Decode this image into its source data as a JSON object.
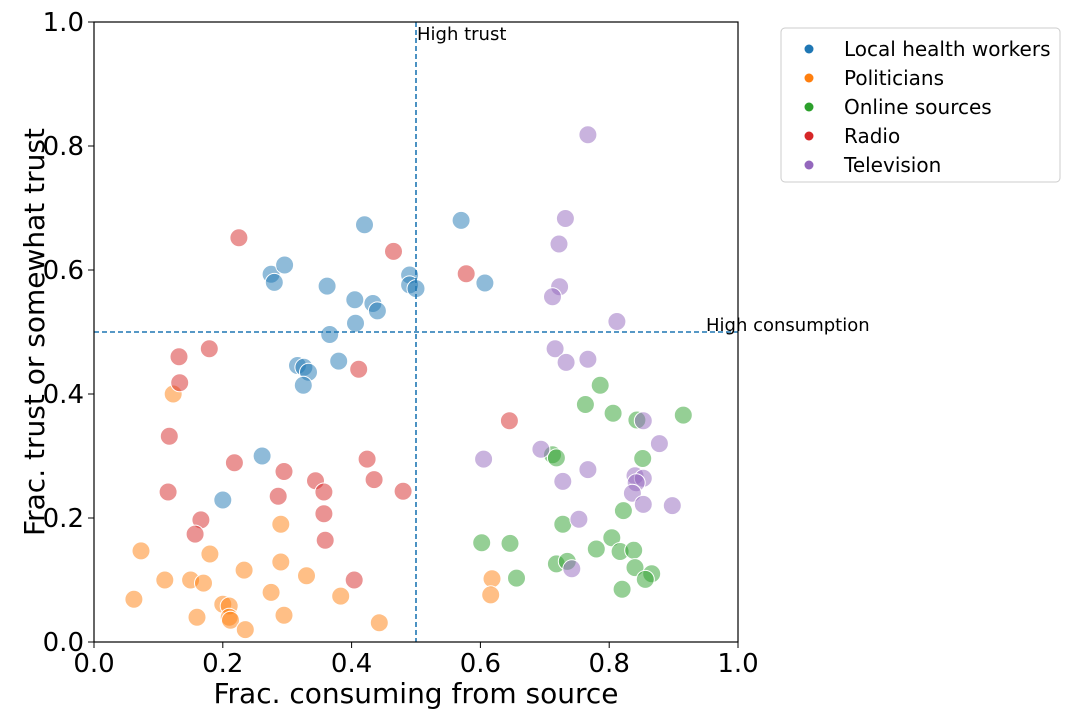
{
  "chart_data": {
    "type": "scatter",
    "title": "",
    "xlabel": "Frac. consuming from source",
    "ylabel": "Frac. trust or somewhat trust",
    "xlim": [
      0.0,
      1.0
    ],
    "ylim": [
      0.0,
      1.0
    ],
    "xticks": [
      "0.0",
      "0.2",
      "0.4",
      "0.6",
      "0.8",
      "1.0"
    ],
    "yticks": [
      "0.0",
      "0.2",
      "0.4",
      "0.6",
      "0.8",
      "1.0"
    ],
    "grid": false,
    "legend_position": "outside-top-right",
    "reference_lines": [
      {
        "orientation": "vertical",
        "value": 0.5,
        "label": "High trust",
        "style": "dashed",
        "color": "#1f77b4"
      },
      {
        "orientation": "horizontal",
        "value": 0.5,
        "label": "High consumption",
        "style": "dashed",
        "color": "#1f77b4"
      }
    ],
    "series": [
      {
        "name": "Local health workers",
        "color": "#1f77b4",
        "points": [
          [
            0.42,
            0.673
          ],
          [
            0.57,
            0.68
          ],
          [
            0.275,
            0.593
          ],
          [
            0.296,
            0.608
          ],
          [
            0.28,
            0.58
          ],
          [
            0.362,
            0.574
          ],
          [
            0.49,
            0.592
          ],
          [
            0.49,
            0.576
          ],
          [
            0.5,
            0.57
          ],
          [
            0.607,
            0.579
          ],
          [
            0.405,
            0.552
          ],
          [
            0.433,
            0.546
          ],
          [
            0.44,
            0.534
          ],
          [
            0.406,
            0.514
          ],
          [
            0.366,
            0.496
          ],
          [
            0.316,
            0.446
          ],
          [
            0.326,
            0.443
          ],
          [
            0.333,
            0.435
          ],
          [
            0.38,
            0.453
          ],
          [
            0.325,
            0.414
          ],
          [
            0.261,
            0.3
          ],
          [
            0.2,
            0.229
          ]
        ]
      },
      {
        "name": "Politicians",
        "color": "#ff7f0e",
        "points": [
          [
            0.123,
            0.4
          ],
          [
            0.073,
            0.147
          ],
          [
            0.11,
            0.1
          ],
          [
            0.15,
            0.1
          ],
          [
            0.17,
            0.095
          ],
          [
            0.18,
            0.142
          ],
          [
            0.062,
            0.069
          ],
          [
            0.16,
            0.04
          ],
          [
            0.2,
            0.061
          ],
          [
            0.21,
            0.058
          ],
          [
            0.21,
            0.04
          ],
          [
            0.212,
            0.035
          ],
          [
            0.235,
            0.02
          ],
          [
            0.233,
            0.116
          ],
          [
            0.29,
            0.19
          ],
          [
            0.29,
            0.129
          ],
          [
            0.275,
            0.08
          ],
          [
            0.295,
            0.043
          ],
          [
            0.33,
            0.107
          ],
          [
            0.383,
            0.074
          ],
          [
            0.443,
            0.031
          ],
          [
            0.618,
            0.102
          ],
          [
            0.616,
            0.076
          ]
        ]
      },
      {
        "name": "Online sources",
        "color": "#2ca02c",
        "points": [
          [
            0.786,
            0.414
          ],
          [
            0.763,
            0.383
          ],
          [
            0.806,
            0.369
          ],
          [
            0.843,
            0.358
          ],
          [
            0.915,
            0.366
          ],
          [
            0.712,
            0.302
          ],
          [
            0.718,
            0.297
          ],
          [
            0.852,
            0.296
          ],
          [
            0.822,
            0.212
          ],
          [
            0.728,
            0.19
          ],
          [
            0.602,
            0.16
          ],
          [
            0.646,
            0.159
          ],
          [
            0.78,
            0.15
          ],
          [
            0.804,
            0.168
          ],
          [
            0.817,
            0.146
          ],
          [
            0.838,
            0.148
          ],
          [
            0.718,
            0.126
          ],
          [
            0.735,
            0.13
          ],
          [
            0.84,
            0.12
          ],
          [
            0.866,
            0.11
          ],
          [
            0.856,
            0.101
          ],
          [
            0.656,
            0.103
          ],
          [
            0.82,
            0.085
          ]
        ]
      },
      {
        "name": "Radio",
        "color": "#d62728",
        "points": [
          [
            0.225,
            0.652
          ],
          [
            0.465,
            0.63
          ],
          [
            0.578,
            0.594
          ],
          [
            0.132,
            0.46
          ],
          [
            0.179,
            0.473
          ],
          [
            0.133,
            0.418
          ],
          [
            0.411,
            0.44
          ],
          [
            0.117,
            0.332
          ],
          [
            0.645,
            0.357
          ],
          [
            0.218,
            0.289
          ],
          [
            0.295,
            0.275
          ],
          [
            0.424,
            0.295
          ],
          [
            0.344,
            0.26
          ],
          [
            0.435,
            0.262
          ],
          [
            0.357,
            0.242
          ],
          [
            0.115,
            0.242
          ],
          [
            0.286,
            0.235
          ],
          [
            0.48,
            0.243
          ],
          [
            0.166,
            0.197
          ],
          [
            0.157,
            0.174
          ],
          [
            0.357,
            0.207
          ],
          [
            0.359,
            0.164
          ],
          [
            0.404,
            0.1
          ]
        ]
      },
      {
        "name": "Television",
        "color": "#9467bd",
        "points": [
          [
            0.767,
            0.818
          ],
          [
            0.732,
            0.683
          ],
          [
            0.722,
            0.642
          ],
          [
            0.723,
            0.573
          ],
          [
            0.712,
            0.557
          ],
          [
            0.812,
            0.517
          ],
          [
            0.716,
            0.473
          ],
          [
            0.733,
            0.451
          ],
          [
            0.767,
            0.456
          ],
          [
            0.694,
            0.311
          ],
          [
            0.853,
            0.357
          ],
          [
            0.878,
            0.32
          ],
          [
            0.605,
            0.295
          ],
          [
            0.767,
            0.278
          ],
          [
            0.728,
            0.259
          ],
          [
            0.84,
            0.268
          ],
          [
            0.853,
            0.264
          ],
          [
            0.842,
            0.257
          ],
          [
            0.836,
            0.24
          ],
          [
            0.753,
            0.198
          ],
          [
            0.853,
            0.222
          ],
          [
            0.898,
            0.22
          ],
          [
            0.742,
            0.118
          ]
        ]
      }
    ]
  }
}
